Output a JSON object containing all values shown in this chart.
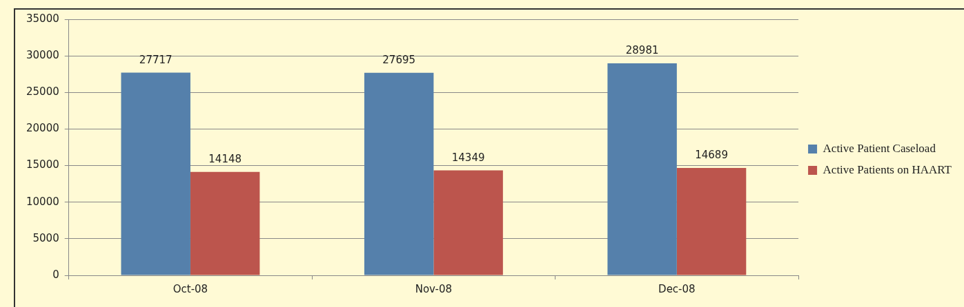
{
  "chart_data": {
    "type": "bar",
    "categories": [
      "Oct-08",
      "Nov-08",
      "Dec-08"
    ],
    "series": [
      {
        "name": "Active Patient Caseload",
        "color": "#5580ab",
        "values": [
          27717,
          27695,
          28981
        ]
      },
      {
        "name": "Active Patients on HAART",
        "color": "#bc554d",
        "values": [
          14148,
          14349,
          14689
        ]
      }
    ],
    "ylim": [
      0,
      35000
    ],
    "yticks": [
      0,
      5000,
      10000,
      15000,
      20000,
      25000,
      30000,
      35000
    ],
    "grid": "y",
    "legend": "right",
    "data_labels": true
  }
}
